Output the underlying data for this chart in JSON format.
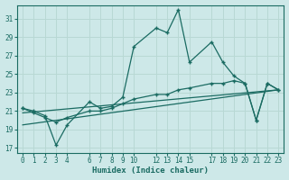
{
  "xlabel": "Humidex (Indice chaleur)",
  "bg_color": "#cde8e8",
  "grid_color": "#b8d8d4",
  "line_color": "#1a6b62",
  "xlim": [
    -0.5,
    23.5
  ],
  "ylim": [
    16.5,
    32.5
  ],
  "yticks": [
    17,
    19,
    21,
    23,
    25,
    27,
    29,
    31
  ],
  "xticks": [
    0,
    1,
    2,
    3,
    4,
    6,
    7,
    8,
    9,
    10,
    12,
    13,
    14,
    15,
    17,
    18,
    19,
    20,
    21,
    22,
    23
  ],
  "line1_x": [
    0,
    1,
    2,
    3,
    4,
    6,
    7,
    8,
    9,
    10,
    12,
    13,
    14,
    15,
    17,
    18,
    19,
    20,
    21,
    22,
    23
  ],
  "line1_y": [
    21.3,
    21.0,
    20.5,
    17.3,
    19.5,
    22.0,
    21.3,
    21.5,
    22.5,
    28.0,
    30.0,
    29.5,
    32.0,
    26.3,
    28.5,
    26.3,
    24.8,
    24.0,
    20.0,
    24.0,
    23.3
  ],
  "line2_x": [
    0,
    1,
    2,
    3,
    4,
    6,
    7,
    8,
    9,
    10,
    12,
    13,
    14,
    15,
    17,
    18,
    19,
    20,
    21,
    22,
    23
  ],
  "line2_y": [
    21.3,
    20.8,
    20.3,
    19.8,
    20.3,
    21.0,
    21.0,
    21.3,
    21.8,
    22.3,
    22.8,
    22.8,
    23.3,
    23.5,
    24.0,
    24.0,
    24.3,
    24.0,
    20.0,
    24.0,
    23.3
  ],
  "line3_x": [
    0,
    23
  ],
  "line3_y": [
    20.8,
    23.3
  ],
  "line4_x": [
    0,
    23
  ],
  "line4_y": [
    19.5,
    23.3
  ]
}
